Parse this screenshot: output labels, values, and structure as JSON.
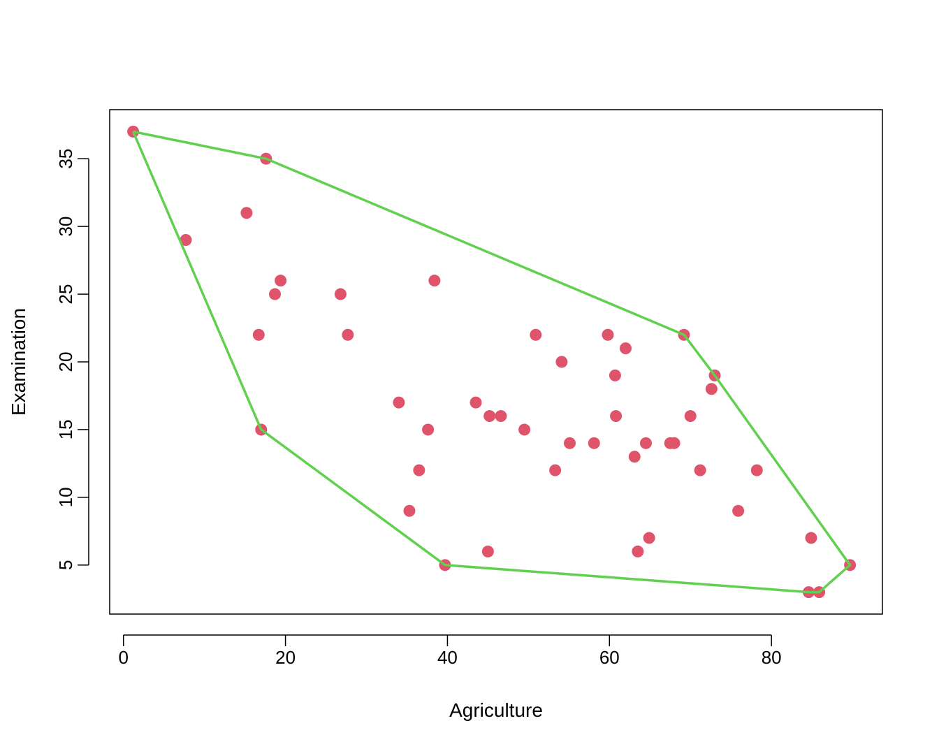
{
  "chart_data": {
    "type": "scatter",
    "title": "",
    "xlabel": "Agriculture",
    "ylabel": "Examination",
    "xlim": [
      -1.7,
      93.7
    ],
    "ylim": [
      1.38,
      38.62
    ],
    "x_ticks": [
      0,
      20,
      40,
      60,
      80
    ],
    "y_ticks": [
      5,
      10,
      15,
      20,
      25,
      30,
      35
    ],
    "grid": false,
    "colors": {
      "points": "#DF536B",
      "hull": "#61D04F",
      "axis": "#000000"
    },
    "points": [
      {
        "x": 1.2,
        "y": 37
      },
      {
        "x": 7.7,
        "y": 29
      },
      {
        "x": 15.2,
        "y": 31
      },
      {
        "x": 16.7,
        "y": 22
      },
      {
        "x": 17.0,
        "y": 15
      },
      {
        "x": 17.6,
        "y": 35
      },
      {
        "x": 18.7,
        "y": 25
      },
      {
        "x": 19.4,
        "y": 26
      },
      {
        "x": 26.8,
        "y": 25
      },
      {
        "x": 27.7,
        "y": 22
      },
      {
        "x": 34.0,
        "y": 17
      },
      {
        "x": 35.3,
        "y": 9
      },
      {
        "x": 36.5,
        "y": 12
      },
      {
        "x": 37.6,
        "y": 15
      },
      {
        "x": 38.4,
        "y": 26
      },
      {
        "x": 39.7,
        "y": 5
      },
      {
        "x": 43.5,
        "y": 17
      },
      {
        "x": 45.0,
        "y": 6
      },
      {
        "x": 45.2,
        "y": 16
      },
      {
        "x": 46.6,
        "y": 16
      },
      {
        "x": 49.5,
        "y": 15
      },
      {
        "x": 50.9,
        "y": 22
      },
      {
        "x": 53.3,
        "y": 12
      },
      {
        "x": 54.1,
        "y": 20
      },
      {
        "x": 55.1,
        "y": 14
      },
      {
        "x": 58.1,
        "y": 14
      },
      {
        "x": 59.8,
        "y": 22
      },
      {
        "x": 60.7,
        "y": 19
      },
      {
        "x": 60.8,
        "y": 16
      },
      {
        "x": 62.0,
        "y": 21
      },
      {
        "x": 63.1,
        "y": 13
      },
      {
        "x": 63.5,
        "y": 6
      },
      {
        "x": 64.5,
        "y": 14
      },
      {
        "x": 64.9,
        "y": 7
      },
      {
        "x": 67.5,
        "y": 14
      },
      {
        "x": 68.0,
        "y": 14
      },
      {
        "x": 69.2,
        "y": 22
      },
      {
        "x": 70.0,
        "y": 16
      },
      {
        "x": 71.2,
        "y": 12
      },
      {
        "x": 72.6,
        "y": 18
      },
      {
        "x": 73.0,
        "y": 19
      },
      {
        "x": 75.9,
        "y": 9
      },
      {
        "x": 78.2,
        "y": 12
      },
      {
        "x": 84.6,
        "y": 3
      },
      {
        "x": 84.9,
        "y": 7
      },
      {
        "x": 85.9,
        "y": 3
      },
      {
        "x": 89.7,
        "y": 5
      }
    ],
    "hull": [
      {
        "x": 1.2,
        "y": 37
      },
      {
        "x": 17.6,
        "y": 35
      },
      {
        "x": 69.2,
        "y": 22
      },
      {
        "x": 73.0,
        "y": 19
      },
      {
        "x": 89.7,
        "y": 5
      },
      {
        "x": 85.9,
        "y": 3
      },
      {
        "x": 84.6,
        "y": 3
      },
      {
        "x": 39.7,
        "y": 5
      },
      {
        "x": 17.0,
        "y": 15
      },
      {
        "x": 1.2,
        "y": 37
      }
    ]
  }
}
